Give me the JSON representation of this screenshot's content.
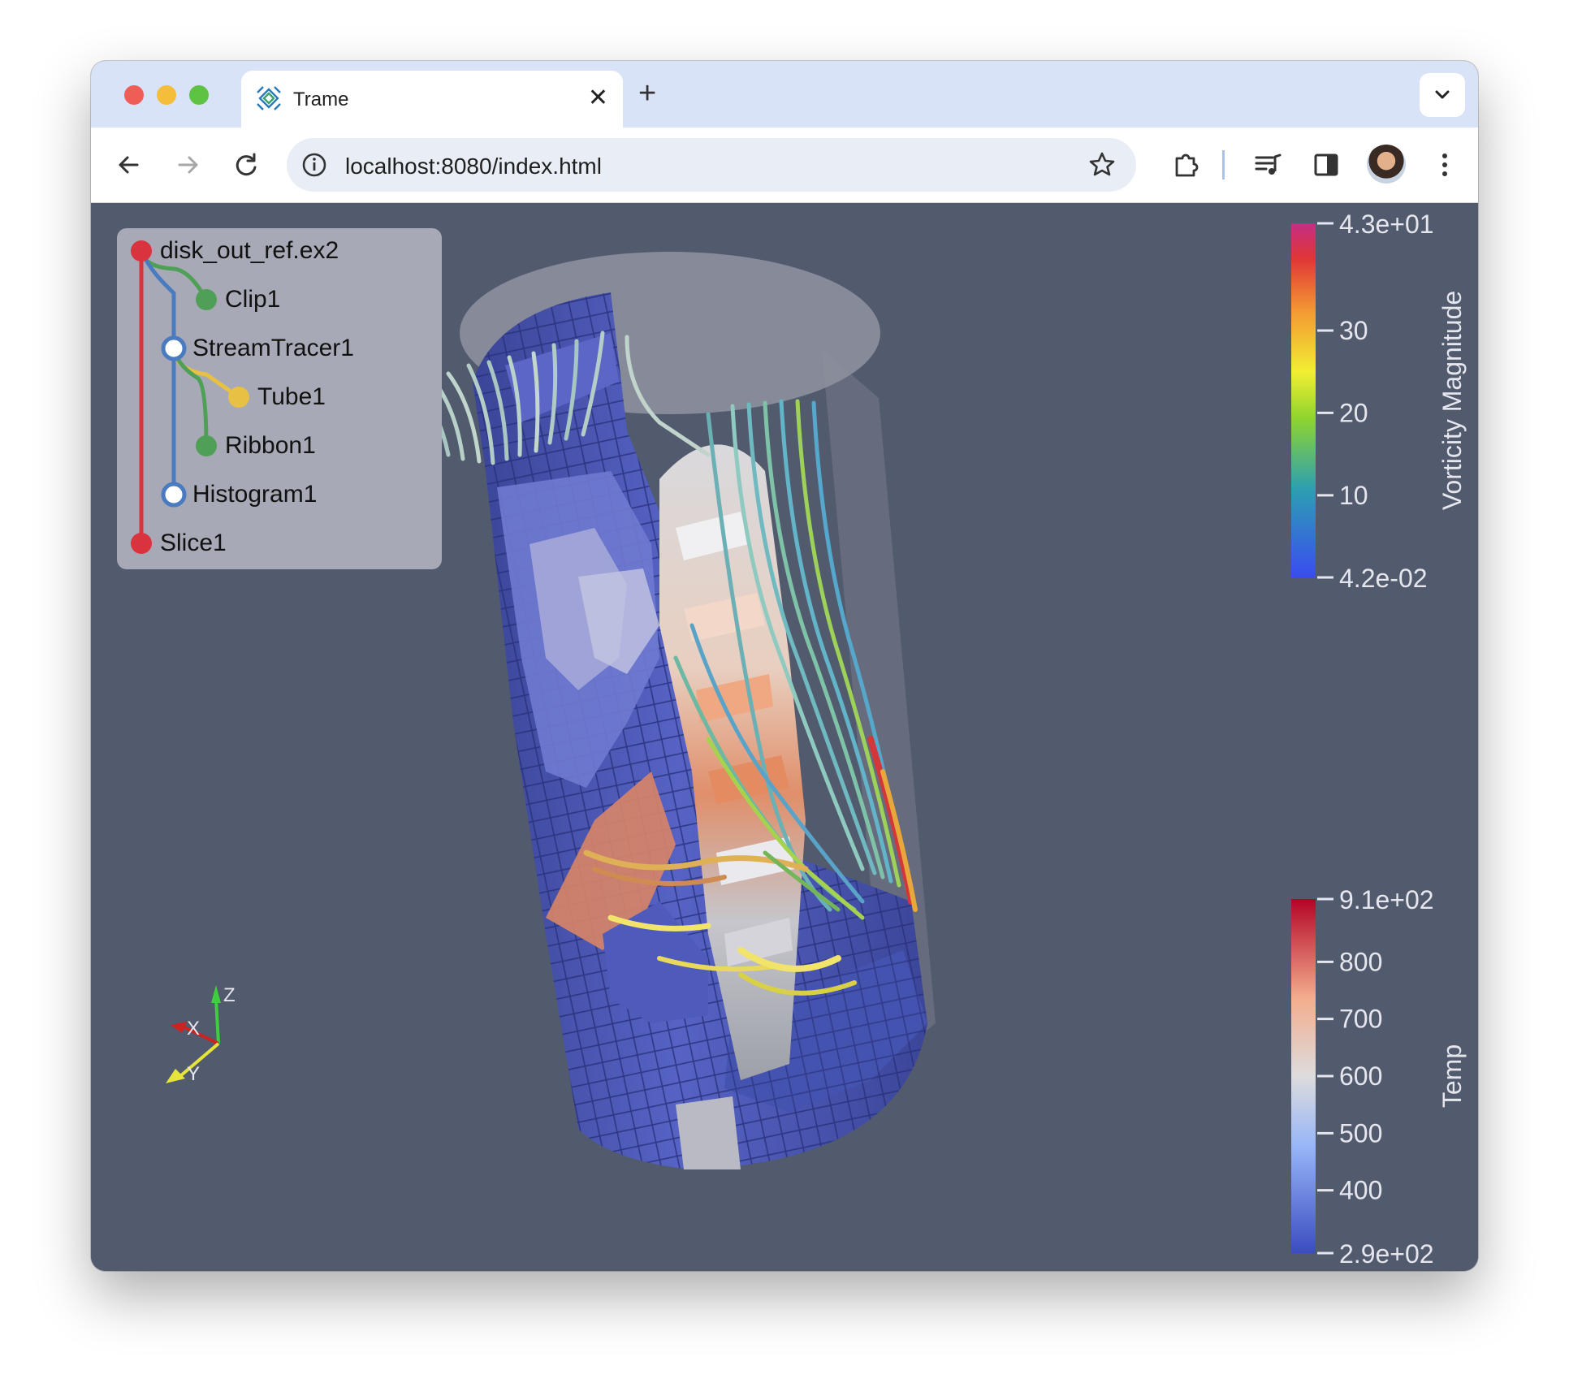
{
  "browser": {
    "tab_title": "Trame",
    "tab_icon": "trame-logo-icon",
    "url": "localhost:8080/index.html",
    "toolbar_icons": [
      "back-arrow-icon",
      "forward-arrow-icon",
      "reload-icon",
      "site-info-icon",
      "bookmark-star-icon",
      "extensions-icon",
      "media-queue-icon",
      "side-panel-icon",
      "profile-avatar",
      "more-menu-icon"
    ]
  },
  "pipeline": {
    "items": [
      {
        "label": "disk_out_ref.ex2",
        "color": "#d9333d",
        "visible": true
      },
      {
        "label": "Clip1",
        "color": "#4f9f57",
        "visible": true
      },
      {
        "label": "StreamTracer1",
        "color": "#4a7bc0",
        "visible": false
      },
      {
        "label": "Tube1",
        "color": "#e8c043",
        "visible": true
      },
      {
        "label": "Ribbon1",
        "color": "#4f9f57",
        "visible": true
      },
      {
        "label": "Histogram1",
        "color": "#4a7bc0",
        "visible": false
      },
      {
        "label": "Slice1",
        "color": "#d9333d",
        "visible": true
      }
    ]
  },
  "scalar_bars": {
    "vorticity": {
      "title": "Vorticity Magnitude",
      "min_label": "4.2e-02",
      "max_label": "4.3e+01",
      "ticks": [
        "30",
        "20",
        "10"
      ],
      "tick_values": [
        30,
        20,
        10
      ],
      "range": [
        0.042,
        43
      ]
    },
    "temp": {
      "title": "Temp",
      "min_label": "2.9e+02",
      "max_label": "9.1e+02",
      "ticks": [
        "800",
        "700",
        "600",
        "500",
        "400"
      ],
      "tick_values": [
        800,
        700,
        600,
        500,
        400
      ],
      "range": [
        290,
        910
      ]
    }
  },
  "axes": {
    "x": "X",
    "y": "Y",
    "z": "Z"
  }
}
